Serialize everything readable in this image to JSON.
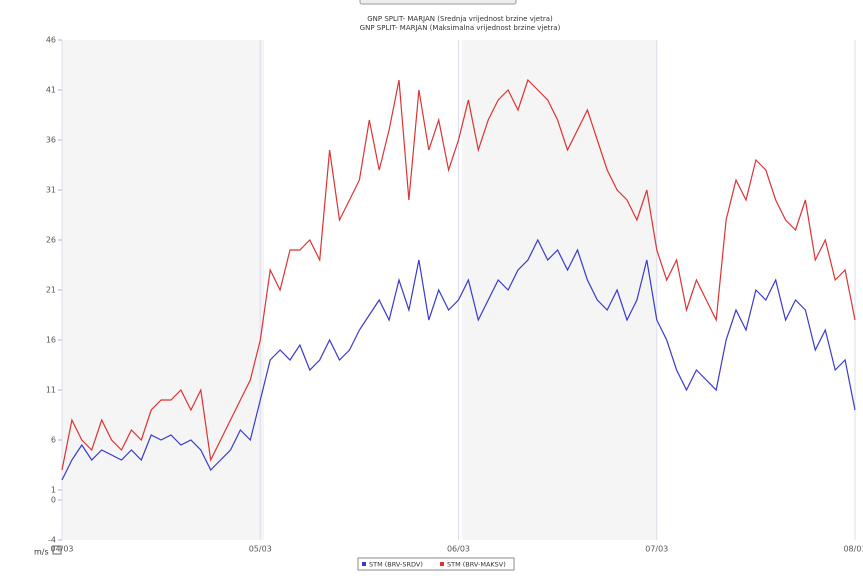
{
  "chart_data": {
    "type": "line",
    "title": "GNP SPLIT- MARJAN (Srednja vrijednost brzine vjetra)",
    "subtitle": "GNP SPLIT- MARJAN (Maksimalna vrijednost brzine vjetra)",
    "y_label": "m/s",
    "x": [
      0,
      0.05,
      0.1,
      0.15,
      0.2,
      0.25,
      0.3,
      0.35,
      0.4,
      0.45,
      0.5,
      0.55,
      0.6,
      0.65,
      0.7,
      0.75,
      0.8,
      0.85,
      0.9,
      0.95,
      1,
      1.05,
      1.1,
      1.15,
      1.2,
      1.25,
      1.3,
      1.35,
      1.4,
      1.45,
      1.5,
      1.55,
      1.6,
      1.65,
      1.7,
      1.75,
      1.8,
      1.85,
      1.9,
      1.95,
      2,
      2.05,
      2.1,
      2.15,
      2.2,
      2.25,
      2.3,
      2.35,
      2.4,
      2.45,
      2.5,
      2.55,
      2.6,
      2.65,
      2.7,
      2.75,
      2.8,
      2.85,
      2.9,
      2.95,
      3,
      3.05,
      3.1,
      3.15,
      3.2,
      3.25,
      3.3,
      3.35,
      3.4,
      3.45,
      3.5,
      3.55,
      3.6,
      3.65,
      3.7,
      3.75,
      3.8,
      3.85,
      3.9,
      3.95,
      4
    ],
    "series": [
      {
        "name": "STM (BRV-SRDV)",
        "color": "#3a3acc",
        "values": [
          2,
          4,
          5.5,
          4,
          5,
          4.5,
          4,
          5,
          4,
          6.5,
          6,
          6.5,
          5.5,
          6,
          5,
          3,
          4,
          5,
          7,
          6,
          10,
          14,
          15,
          14,
          15.5,
          13,
          14,
          16,
          14,
          15,
          17,
          18.5,
          20,
          18,
          22,
          19,
          24,
          18,
          21,
          19,
          20,
          22,
          18,
          20,
          22,
          21,
          23,
          24,
          26,
          24,
          25,
          23,
          25,
          22,
          20,
          19,
          21,
          18,
          20,
          24,
          18,
          16,
          13,
          11,
          13,
          12,
          11,
          16,
          19,
          17,
          21,
          20,
          22,
          18,
          20,
          19,
          15,
          17,
          13,
          14,
          9
        ]
      },
      {
        "name": "STM (BRV-MAKSV)",
        "color": "#dd3333",
        "values": [
          3,
          8,
          6,
          5,
          8,
          6,
          5,
          7,
          6,
          9,
          10,
          10,
          11,
          9,
          11,
          4,
          6,
          8,
          10,
          12,
          16,
          23,
          21,
          25,
          25,
          26,
          24,
          35,
          28,
          30,
          32,
          38,
          33,
          37,
          42,
          30,
          41,
          35,
          38,
          33,
          36,
          40,
          35,
          38,
          40,
          41,
          39,
          42,
          41,
          40,
          38,
          35,
          37,
          39,
          36,
          33,
          31,
          30,
          28,
          31,
          25,
          22,
          24,
          19,
          22,
          20,
          18,
          28,
          32,
          30,
          34,
          33,
          30,
          28,
          27,
          30,
          24,
          26,
          22,
          23,
          18
        ]
      }
    ],
    "xlim": [
      0,
      4
    ],
    "xticks": [
      {
        "value": 0,
        "label": "04/03"
      },
      {
        "value": 1,
        "label": "05/03"
      },
      {
        "value": 2,
        "label": "06/03"
      },
      {
        "value": 3,
        "label": "07/03"
      },
      {
        "value": 4,
        "label": "08/03"
      }
    ],
    "ylim": [
      -4,
      46
    ],
    "yticks": [
      -4,
      0,
      1,
      6,
      11,
      16,
      21,
      26,
      31,
      36,
      41,
      46
    ]
  }
}
